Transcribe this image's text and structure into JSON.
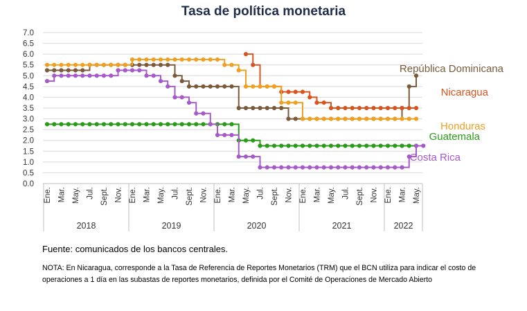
{
  "title": "Tasa de política monetaria",
  "source": "Fuente: comunicados de los bancos centrales.",
  "note": "NOTA: En Nicaragua, corresponde a la Tasa de Referencia de Reportes Monetarios (TRM) que el BCN utiliza para indicar el costo de operaciones a 1 día en las subastas de reportes monetarios, definida por el Comité de Operaciones de Mercado Abierto",
  "chart_data": {
    "type": "line",
    "title": "Tasa de política monetaria",
    "xlabel": "",
    "ylabel": "",
    "ylim": [
      0,
      7
    ],
    "y_ticks": [
      "0.0",
      "0.5",
      "1.0",
      "1.5",
      "2.0",
      "2.5",
      "3.0",
      "3.5",
      "4.0",
      "4.5",
      "5.0",
      "5.5",
      "6.0",
      "6.5",
      "7.0"
    ],
    "x_start": "2018-01",
    "month_tick_labels": [
      "Ene.",
      "Mar.",
      "May.",
      "Jul.",
      "Sept.",
      "Nov."
    ],
    "years": [
      "2018",
      "2019",
      "2020",
      "2021",
      "2022"
    ],
    "grid": true,
    "legend": "inline labels at right end of each series",
    "series": [
      {
        "name": "República Dominicana",
        "color": "#7a5a3a",
        "values": [
          5.25,
          5.25,
          5.25,
          5.25,
          5.25,
          5.25,
          5.5,
          5.5,
          5.5,
          5.5,
          5.5,
          5.5,
          5.5,
          5.5,
          5.5,
          5.5,
          5.5,
          5.5,
          5.0,
          4.75,
          4.5,
          4.5,
          4.5,
          4.5,
          4.5,
          4.5,
          4.5,
          3.5,
          3.5,
          3.5,
          3.5,
          3.5,
          3.5,
          3.5,
          3.0,
          3.0,
          3.0,
          3.0,
          3.0,
          3.0,
          3.0,
          3.0,
          3.0,
          3.0,
          3.0,
          3.0,
          3.0,
          3.0,
          3.0,
          3.0,
          3.5,
          4.5,
          5.0
        ]
      },
      {
        "name": "Nicaragua",
        "color": "#d9531e",
        "values": [
          null,
          null,
          null,
          null,
          null,
          null,
          null,
          null,
          null,
          null,
          null,
          null,
          null,
          null,
          null,
          null,
          null,
          null,
          null,
          null,
          null,
          null,
          null,
          null,
          null,
          null,
          null,
          null,
          6.0,
          5.5,
          4.5,
          4.5,
          4.5,
          4.25,
          4.25,
          4.25,
          4.25,
          4.0,
          3.75,
          3.75,
          3.5,
          3.5,
          3.5,
          3.5,
          3.5,
          3.5,
          3.5,
          3.5,
          3.5,
          3.5,
          3.5,
          3.5,
          3.5
        ]
      },
      {
        "name": "Honduras",
        "color": "#f0a020",
        "values": [
          5.5,
          5.5,
          5.5,
          5.5,
          5.5,
          5.5,
          5.5,
          5.5,
          5.5,
          5.5,
          5.5,
          5.5,
          5.75,
          5.75,
          5.75,
          5.75,
          5.75,
          5.75,
          5.75,
          5.75,
          5.75,
          5.75,
          5.75,
          5.75,
          5.75,
          5.5,
          5.5,
          5.25,
          4.5,
          4.5,
          4.5,
          4.5,
          4.5,
          3.75,
          3.75,
          3.75,
          3.0,
          3.0,
          3.0,
          3.0,
          3.0,
          3.0,
          3.0,
          3.0,
          3.0,
          3.0,
          3.0,
          3.0,
          3.0,
          3.0,
          3.0,
          3.0,
          3.0
        ]
      },
      {
        "name": "Guatemala",
        "color": "#2a9a1a",
        "values": [
          2.75,
          2.75,
          2.75,
          2.75,
          2.75,
          2.75,
          2.75,
          2.75,
          2.75,
          2.75,
          2.75,
          2.75,
          2.75,
          2.75,
          2.75,
          2.75,
          2.75,
          2.75,
          2.75,
          2.75,
          2.75,
          2.75,
          2.75,
          2.75,
          2.75,
          2.75,
          2.75,
          2.0,
          2.0,
          2.0,
          1.75,
          1.75,
          1.75,
          1.75,
          1.75,
          1.75,
          1.75,
          1.75,
          1.75,
          1.75,
          1.75,
          1.75,
          1.75,
          1.75,
          1.75,
          1.75,
          1.75,
          1.75,
          1.75,
          1.75,
          1.75,
          1.75,
          1.75
        ]
      },
      {
        "name": "Costa Rica",
        "color": "#a659c9",
        "values": [
          4.75,
          5.0,
          5.0,
          5.0,
          5.0,
          5.0,
          5.0,
          5.0,
          5.0,
          5.0,
          5.25,
          5.25,
          5.25,
          5.25,
          5.0,
          5.0,
          4.75,
          4.5,
          4.0,
          4.0,
          3.75,
          3.25,
          3.25,
          2.75,
          2.25,
          2.25,
          2.25,
          1.25,
          1.25,
          1.25,
          0.75,
          0.75,
          0.75,
          0.75,
          0.75,
          0.75,
          0.75,
          0.75,
          0.75,
          0.75,
          0.75,
          0.75,
          0.75,
          0.75,
          0.75,
          0.75,
          0.75,
          0.75,
          0.75,
          0.75,
          0.75,
          1.25,
          1.75,
          1.75
        ]
      }
    ]
  }
}
